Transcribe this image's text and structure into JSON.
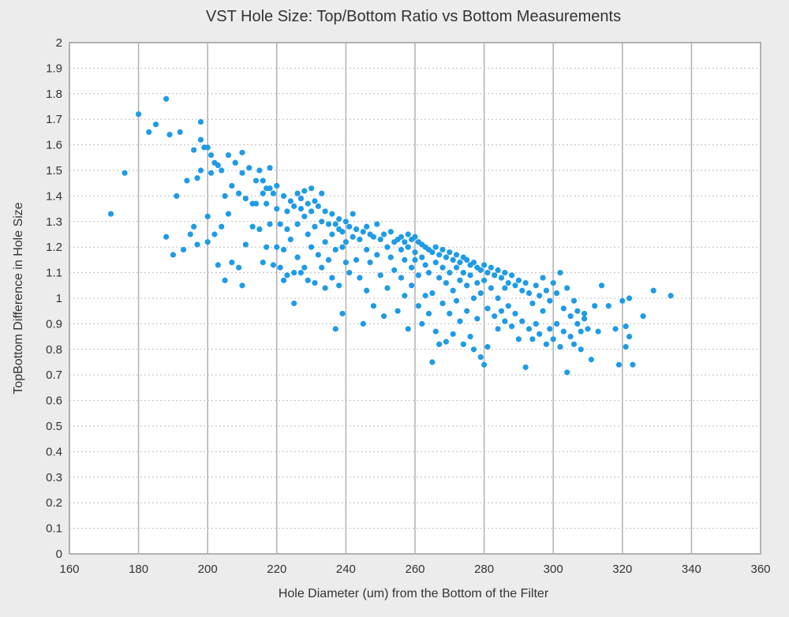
{
  "chart_data": {
    "type": "scatter",
    "title": "VST Hole Size: Top/Bottom Ratio vs Bottom Measurements",
    "xlabel": "Hole Diameter (um) from the Bottom of the Filter",
    "ylabel": "TopBottom Difference in Hole Size",
    "xlim": [
      160,
      360
    ],
    "ylim": [
      0,
      2
    ],
    "x_ticks": [
      "160",
      "180",
      "200",
      "220",
      "240",
      "260",
      "280",
      "300",
      "320",
      "340",
      "360"
    ],
    "y_ticks": [
      "0",
      "0.1",
      "0.2",
      "0.3",
      "0.4",
      "0.5",
      "0.6",
      "0.7",
      "0.8",
      "0.9",
      "1",
      "1.1",
      "1.2",
      "1.3",
      "1.4",
      "1.5",
      "1.6",
      "1.7",
      "1.8",
      "1.9",
      "2"
    ],
    "grid": true,
    "legend": "none",
    "marker_color": "#1f9be6",
    "points": [
      [
        172,
        1.33
      ],
      [
        176,
        1.49
      ],
      [
        180,
        1.72
      ],
      [
        183,
        1.65
      ],
      [
        185,
        1.68
      ],
      [
        188,
        1.78
      ],
      [
        188,
        1.24
      ],
      [
        189,
        1.64
      ],
      [
        190,
        1.17
      ],
      [
        191,
        1.4
      ],
      [
        192,
        1.65
      ],
      [
        193,
        1.19
      ],
      [
        194,
        1.46
      ],
      [
        195,
        1.25
      ],
      [
        196,
        1.58
      ],
      [
        196,
        1.28
      ],
      [
        197,
        1.21
      ],
      [
        197,
        1.47
      ],
      [
        198,
        1.69
      ],
      [
        198,
        1.62
      ],
      [
        198,
        1.5
      ],
      [
        199,
        1.59
      ],
      [
        200,
        1.59
      ],
      [
        200,
        1.32
      ],
      [
        200,
        1.22
      ],
      [
        201,
        1.56
      ],
      [
        201,
        1.49
      ],
      [
        202,
        1.53
      ],
      [
        202,
        1.25
      ],
      [
        203,
        1.52
      ],
      [
        203,
        1.13
      ],
      [
        204,
        1.5
      ],
      [
        204,
        1.28
      ],
      [
        205,
        1.07
      ],
      [
        205,
        1.4
      ],
      [
        206,
        1.56
      ],
      [
        206,
        1.33
      ],
      [
        207,
        1.14
      ],
      [
        207,
        1.44
      ],
      [
        208,
        1.53
      ],
      [
        208,
        1.53
      ],
      [
        209,
        1.12
      ],
      [
        209,
        1.41
      ],
      [
        210,
        1.57
      ],
      [
        210,
        1.05
      ],
      [
        210,
        1.49
      ],
      [
        211,
        1.39
      ],
      [
        211,
        1.21
      ],
      [
        212,
        1.51
      ],
      [
        213,
        1.37
      ],
      [
        213,
        1.28
      ],
      [
        214,
        1.46
      ],
      [
        214,
        1.37
      ],
      [
        215,
        1.5
      ],
      [
        215,
        1.27
      ],
      [
        216,
        1.46
      ],
      [
        216,
        1.14
      ],
      [
        216,
        1.41
      ],
      [
        217,
        1.43
      ],
      [
        217,
        1.37
      ],
      [
        217,
        1.2
      ],
      [
        218,
        1.51
      ],
      [
        218,
        1.43
      ],
      [
        218,
        1.29
      ],
      [
        219,
        1.41
      ],
      [
        219,
        1.13
      ],
      [
        220,
        1.44
      ],
      [
        220,
        1.35
      ],
      [
        220,
        1.2
      ],
      [
        221,
        1.12
      ],
      [
        221,
        1.29
      ],
      [
        222,
        1.4
      ],
      [
        222,
        1.19
      ],
      [
        222,
        1.07
      ],
      [
        223,
        1.34
      ],
      [
        223,
        1.27
      ],
      [
        223,
        1.09
      ],
      [
        224,
        1.38
      ],
      [
        224,
        1.23
      ],
      [
        225,
        1.36
      ],
      [
        225,
        0.98
      ],
      [
        225,
        1.1
      ],
      [
        226,
        1.41
      ],
      [
        226,
        1.29
      ],
      [
        226,
        1.16
      ],
      [
        227,
        1.35
      ],
      [
        227,
        1.1
      ],
      [
        227,
        1.39
      ],
      [
        228,
        1.42
      ],
      [
        228,
        1.32
      ],
      [
        228,
        1.12
      ],
      [
        229,
        1.37
      ],
      [
        229,
        1.25
      ],
      [
        229,
        1.07
      ],
      [
        230,
        1.43
      ],
      [
        230,
        1.34
      ],
      [
        230,
        1.2
      ],
      [
        231,
        1.38
      ],
      [
        231,
        1.28
      ],
      [
        231,
        1.06
      ],
      [
        232,
        1.36
      ],
      [
        232,
        1.17
      ],
      [
        233,
        1.41
      ],
      [
        233,
        1.3
      ],
      [
        233,
        1.12
      ],
      [
        234,
        1.34
      ],
      [
        234,
        1.22
      ],
      [
        234,
        1.04
      ],
      [
        235,
        1.29
      ],
      [
        235,
        1.15
      ],
      [
        236,
        1.33
      ],
      [
        236,
        1.25
      ],
      [
        236,
        1.08
      ],
      [
        237,
        1.29
      ],
      [
        237,
        1.19
      ],
      [
        237,
        0.88
      ],
      [
        238,
        1.31
      ],
      [
        238,
        1.27
      ],
      [
        238,
        1.05
      ],
      [
        239,
        1.26
      ],
      [
        239,
        0.94
      ],
      [
        239,
        1.2
      ],
      [
        240,
        1.3
      ],
      [
        240,
        1.22
      ],
      [
        240,
        1.14
      ],
      [
        241,
        1.28
      ],
      [
        241,
        1.1
      ],
      [
        242,
        1.33
      ],
      [
        242,
        1.24
      ],
      [
        243,
        1.27
      ],
      [
        243,
        1.15
      ],
      [
        244,
        1.23
      ],
      [
        244,
        1.08
      ],
      [
        245,
        1.26
      ],
      [
        245,
        0.9
      ],
      [
        246,
        1.28
      ],
      [
        246,
        1.19
      ],
      [
        246,
        1.03
      ],
      [
        247,
        1.25
      ],
      [
        247,
        1.14
      ],
      [
        248,
        1.24
      ],
      [
        248,
        0.97
      ],
      [
        249,
        1.29
      ],
      [
        249,
        1.17
      ],
      [
        250,
        1.23
      ],
      [
        250,
        1.09
      ],
      [
        251,
        1.25
      ],
      [
        251,
        0.93
      ],
      [
        252,
        1.2
      ],
      [
        252,
        1.04
      ],
      [
        253,
        1.26
      ],
      [
        253,
        1.16
      ],
      [
        254,
        1.22
      ],
      [
        254,
        1.11
      ],
      [
        255,
        1.23
      ],
      [
        255,
        0.95
      ],
      [
        256,
        1.24
      ],
      [
        256,
        1.19
      ],
      [
        256,
        1.08
      ],
      [
        257,
        1.22
      ],
      [
        257,
        1.15
      ],
      [
        257,
        1.01
      ],
      [
        258,
        1.25
      ],
      [
        258,
        1.2
      ],
      [
        258,
        0.88
      ],
      [
        259,
        1.23
      ],
      [
        259,
        1.12
      ],
      [
        259,
        1.05
      ],
      [
        260,
        1.24
      ],
      [
        260,
        1.18
      ],
      [
        260,
        1.15
      ],
      [
        261,
        1.22
      ],
      [
        261,
        1.09
      ],
      [
        261,
        0.97
      ],
      [
        262,
        1.21
      ],
      [
        262,
        1.16
      ],
      [
        262,
        0.9
      ],
      [
        263,
        1.2
      ],
      [
        263,
        1.13
      ],
      [
        263,
        1.01
      ],
      [
        264,
        1.19
      ],
      [
        264,
        1.1
      ],
      [
        264,
        0.94
      ],
      [
        265,
        1.18
      ],
      [
        265,
        1.02
      ],
      [
        265,
        0.75
      ],
      [
        266,
        1.2
      ],
      [
        266,
        1.14
      ],
      [
        266,
        0.87
      ],
      [
        267,
        1.17
      ],
      [
        267,
        1.08
      ],
      [
        267,
        0.82
      ],
      [
        268,
        1.19
      ],
      [
        268,
        1.12
      ],
      [
        268,
        0.98
      ],
      [
        269,
        1.16
      ],
      [
        269,
        1.06
      ],
      [
        269,
        0.83
      ],
      [
        270,
        1.18
      ],
      [
        270,
        1.1
      ],
      [
        270,
        0.94
      ],
      [
        271,
        1.15
      ],
      [
        271,
        1.03
      ],
      [
        271,
        0.86
      ],
      [
        272,
        1.17
      ],
      [
        272,
        1.12
      ],
      [
        272,
        0.99
      ],
      [
        273,
        1.14
      ],
      [
        273,
        1.07
      ],
      [
        273,
        0.91
      ],
      [
        274,
        1.16
      ],
      [
        274,
        1.1
      ],
      [
        274,
        0.82
      ],
      [
        275,
        1.15
      ],
      [
        275,
        1.05
      ],
      [
        275,
        0.95
      ],
      [
        276,
        1.13
      ],
      [
        276,
        1.09
      ],
      [
        276,
        0.85
      ],
      [
        277,
        1.14
      ],
      [
        277,
        1.0
      ],
      [
        277,
        0.8
      ],
      [
        278,
        1.12
      ],
      [
        278,
        1.06
      ],
      [
        278,
        0.92
      ],
      [
        279,
        1.11
      ],
      [
        279,
        1.02
      ],
      [
        279,
        0.77
      ],
      [
        280,
        1.13
      ],
      [
        280,
        1.07
      ],
      [
        280,
        0.74
      ],
      [
        281,
        1.1
      ],
      [
        281,
        0.96
      ],
      [
        281,
        0.81
      ],
      [
        282,
        1.12
      ],
      [
        282,
        1.04
      ],
      [
        283,
        1.09
      ],
      [
        283,
        0.93
      ],
      [
        284,
        1.11
      ],
      [
        284,
        1.0
      ],
      [
        284,
        0.88
      ],
      [
        285,
        1.08
      ],
      [
        285,
        0.95
      ],
      [
        286,
        1.1
      ],
      [
        286,
        0.91
      ],
      [
        286,
        1.04
      ],
      [
        287,
        1.06
      ],
      [
        287,
        0.97
      ],
      [
        288,
        1.09
      ],
      [
        288,
        0.89
      ],
      [
        289,
        1.05
      ],
      [
        289,
        0.94
      ],
      [
        290,
        1.07
      ],
      [
        290,
        0.84
      ],
      [
        291,
        1.03
      ],
      [
        291,
        0.91
      ],
      [
        292,
        1.06
      ],
      [
        292,
        0.73
      ],
      [
        293,
        1.02
      ],
      [
        293,
        0.88
      ],
      [
        294,
        0.98
      ],
      [
        294,
        0.84
      ],
      [
        295,
        1.05
      ],
      [
        295,
        0.9
      ],
      [
        296,
        1.01
      ],
      [
        296,
        0.86
      ],
      [
        297,
        1.08
      ],
      [
        297,
        0.95
      ],
      [
        298,
        1.03
      ],
      [
        298,
        0.82
      ],
      [
        299,
        0.99
      ],
      [
        299,
        0.88
      ],
      [
        300,
        1.06
      ],
      [
        300,
        0.84
      ],
      [
        301,
        1.02
      ],
      [
        301,
        0.9
      ],
      [
        302,
        1.1
      ],
      [
        302,
        0.81
      ],
      [
        303,
        0.96
      ],
      [
        303,
        0.87
      ],
      [
        304,
        1.04
      ],
      [
        304,
        0.71
      ],
      [
        305,
        0.93
      ],
      [
        305,
        0.85
      ],
      [
        306,
        0.99
      ],
      [
        306,
        0.82
      ],
      [
        307,
        0.95
      ],
      [
        307,
        0.9
      ],
      [
        308,
        0.87
      ],
      [
        308,
        0.8
      ],
      [
        309,
        0.94
      ],
      [
        309,
        0.92
      ],
      [
        310,
        0.88
      ],
      [
        311,
        0.76
      ],
      [
        312,
        0.97
      ],
      [
        313,
        0.87
      ],
      [
        314,
        1.05
      ],
      [
        316,
        0.97
      ],
      [
        318,
        0.88
      ],
      [
        319,
        0.74
      ],
      [
        320,
        0.99
      ],
      [
        321,
        0.89
      ],
      [
        321,
        0.81
      ],
      [
        322,
        0.85
      ],
      [
        322,
        1.0
      ],
      [
        323,
        0.74
      ],
      [
        326,
        0.93
      ],
      [
        329,
        1.03
      ],
      [
        334,
        1.01
      ]
    ]
  }
}
